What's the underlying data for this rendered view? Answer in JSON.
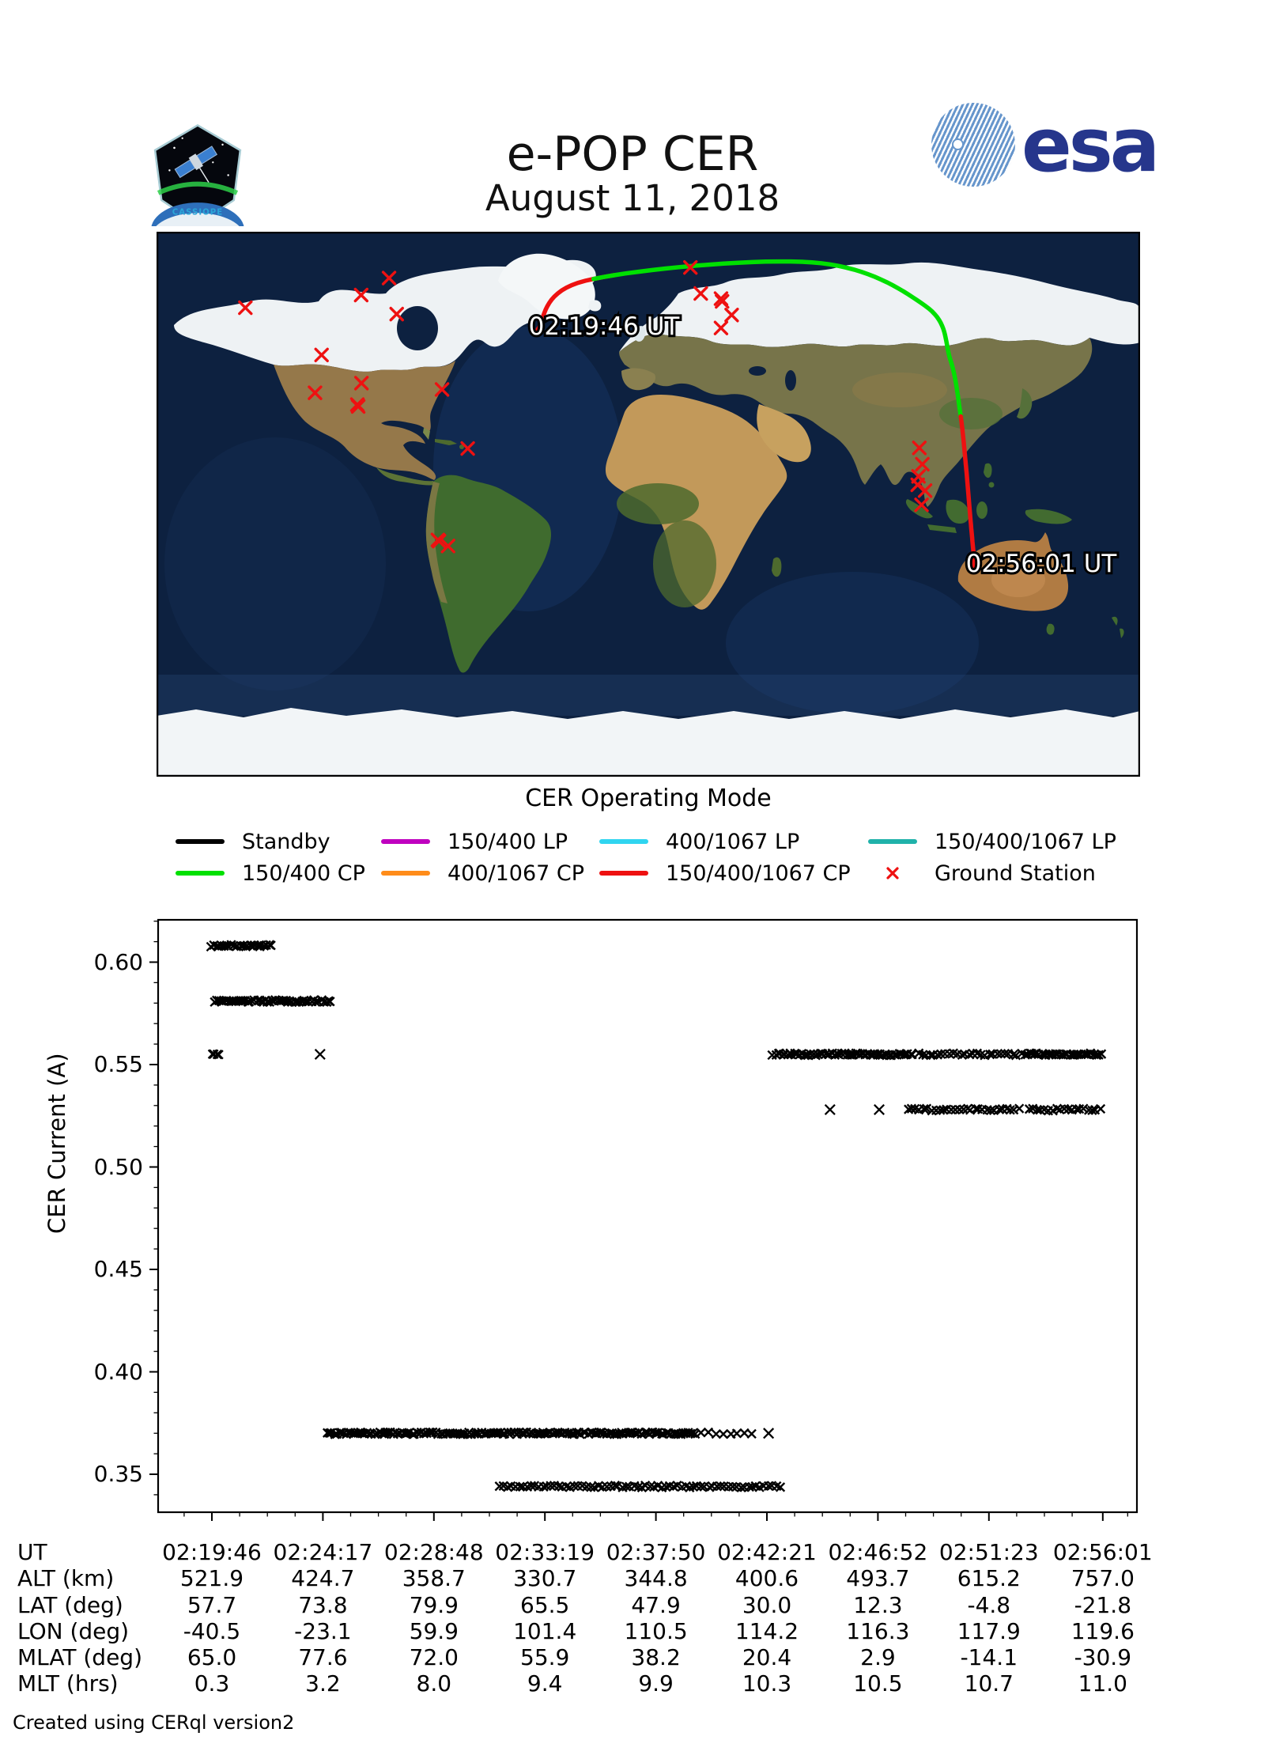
{
  "header": {
    "title": "e-POP CER",
    "date": "August 11, 2018",
    "patch_label": "CASSIOPE",
    "esa_logo": {
      "text": "esa",
      "color": "#26368c"
    }
  },
  "map": {
    "legend_title": "CER Operating Mode",
    "track_labels": {
      "start": "02:19:46 UT",
      "end": "02:56:01 UT"
    },
    "legend_items": [
      {
        "label": "Standby",
        "color": "#000000",
        "marker": "line"
      },
      {
        "label": "150/400 CP",
        "color": "#00e000",
        "marker": "line"
      },
      {
        "label": "150/400 LP",
        "color": "#bf00bf",
        "marker": "line"
      },
      {
        "label": "400/1067 CP",
        "color": "#ff8c1a",
        "marker": "line"
      },
      {
        "label": "400/1067 LP",
        "color": "#30d5f0",
        "marker": "line"
      },
      {
        "label": "150/400/1067 CP",
        "color": "#ee1111",
        "marker": "line"
      },
      {
        "label": "150/400/1067 LP",
        "color": "#20b2aa",
        "marker": "line"
      },
      {
        "label": "Ground Station",
        "color": "#ee1111",
        "marker": "x"
      }
    ],
    "ground_stations": [
      {
        "lon": -147.5,
        "lat": 64.9
      },
      {
        "lon": -94.9,
        "lat": 74.7
      },
      {
        "lon": -105.1,
        "lat": 69.1
      },
      {
        "lon": -92.1,
        "lat": 62.8
      },
      {
        "lon": -119.6,
        "lat": 49.3
      },
      {
        "lon": -105.0,
        "lat": 40.0
      },
      {
        "lon": -122.0,
        "lat": 36.8
      },
      {
        "lon": -106.5,
        "lat": 32.9
      },
      {
        "lon": -106.2,
        "lat": 32.3
      },
      {
        "lon": -75.5,
        "lat": 37.9
      },
      {
        "lon": -66.1,
        "lat": 18.4
      },
      {
        "lon": -77.0,
        "lat": -11.8
      },
      {
        "lon": -76.6,
        "lat": -12.2
      },
      {
        "lon": -73.3,
        "lat": -13.8
      },
      {
        "lon": 15.4,
        "lat": 78.2
      },
      {
        "lon": 19.2,
        "lat": 69.6
      },
      {
        "lon": 26.6,
        "lat": 67.9
      },
      {
        "lon": 27.0,
        "lat": 67.0
      },
      {
        "lon": 30.5,
        "lat": 62.5
      },
      {
        "lon": 26.6,
        "lat": 58.2
      },
      {
        "lon": 99.2,
        "lat": 18.6
      },
      {
        "lon": 100.3,
        "lat": 13.2
      },
      {
        "lon": 98.9,
        "lat": 9.2
      },
      {
        "lon": 98.6,
        "lat": 6.4
      },
      {
        "lon": 101.3,
        "lat": 4.5
      },
      {
        "lon": 100.0,
        "lat": -0.2
      }
    ],
    "track": {
      "points": [
        {
          "ut": "02:19:46",
          "lat": 57.7,
          "lon": -40.5
        },
        {
          "ut": "02:24:17",
          "lat": 73.8,
          "lon": -23.1
        },
        {
          "ut": "02:28:48",
          "lat": 79.9,
          "lon": 59.9
        },
        {
          "ut": "02:33:19",
          "lat": 65.5,
          "lon": 101.4
        },
        {
          "ut": "02:37:50",
          "lat": 47.9,
          "lon": 110.5
        },
        {
          "ut": "02:42:21",
          "lat": 30.0,
          "lon": 114.2
        },
        {
          "ut": "02:46:52",
          "lat": 12.3,
          "lon": 116.3
        },
        {
          "ut": "02:51:23",
          "lat": -4.8,
          "lon": 117.9
        },
        {
          "ut": "02:56:01",
          "lat": -21.8,
          "lon": 119.6
        }
      ],
      "mode_segments": [
        {
          "mode": "150/400/1067 CP",
          "color": "#ee1111",
          "from": "02:19:46",
          "to": "02:24:45"
        },
        {
          "mode": "150/400 CP",
          "color": "#00e000",
          "from": "02:24:45",
          "to": "02:42:55"
        },
        {
          "mode": "150/400/1067 CP",
          "color": "#ee1111",
          "from": "02:42:55",
          "to": "02:56:01"
        }
      ]
    }
  },
  "chart_data": {
    "type": "scatter",
    "title": "",
    "xlabel": "UT",
    "ylabel": "CER Current (A)",
    "marker": "x",
    "marker_color": "#000000",
    "grid": false,
    "x_ticks": [
      "02:19:46",
      "02:24:17",
      "02:28:48",
      "02:33:19",
      "02:37:50",
      "02:42:21",
      "02:46:52",
      "02:51:23",
      "02:56:01"
    ],
    "y_ticks": [
      0.35,
      0.4,
      0.45,
      0.5,
      0.55,
      0.6
    ],
    "ylim": [
      0.331,
      0.621
    ],
    "xlim": [
      "02:17:35",
      "02:57:30"
    ],
    "bands": [
      {
        "current": 0.608,
        "t_start": "02:19:46",
        "t_end": "02:22:16",
        "density": "dense"
      },
      {
        "current": 0.581,
        "t_start": "02:19:52",
        "t_end": "02:24:37",
        "density": "dense"
      },
      {
        "current": 0.555,
        "t_start": "02:19:46",
        "t_end": "02:20:06",
        "density": "dense"
      },
      {
        "current": 0.37,
        "t_start": "02:24:27",
        "t_end": "02:39:30",
        "density": "dense"
      },
      {
        "current": 0.37,
        "t_start": "02:39:42",
        "t_end": "02:41:55",
        "density": "medium"
      },
      {
        "current": 0.344,
        "t_start": "02:31:28",
        "t_end": "02:42:55",
        "density": "medium-dense"
      },
      {
        "current": 0.555,
        "t_start": "02:42:36",
        "t_end": "02:48:20",
        "density": "dense"
      },
      {
        "current": 0.555,
        "t_start": "02:48:30",
        "t_end": "02:52:35",
        "density": "medium-dense"
      },
      {
        "current": 0.555,
        "t_start": "02:52:45",
        "t_end": "02:55:58",
        "density": "dense"
      },
      {
        "current": 0.528,
        "t_start": "02:48:05",
        "t_end": "02:52:40",
        "density": "medium-dense"
      },
      {
        "current": 0.528,
        "t_start": "02:53:00",
        "t_end": "02:55:55",
        "density": "medium-dense"
      }
    ],
    "singles": [
      {
        "current": 0.555,
        "t": "02:24:10"
      },
      {
        "current": 0.37,
        "t": "02:42:25"
      },
      {
        "current": 0.528,
        "t": "02:44:55"
      },
      {
        "current": 0.528,
        "t": "02:46:55"
      }
    ]
  },
  "table": {
    "rows": [
      {
        "label": "UT",
        "values": [
          "02:19:46",
          "02:24:17",
          "02:28:48",
          "02:33:19",
          "02:37:50",
          "02:42:21",
          "02:46:52",
          "02:51:23",
          "02:56:01"
        ]
      },
      {
        "label": "ALT (km)",
        "values": [
          "521.9",
          "424.7",
          "358.7",
          "330.7",
          "344.8",
          "400.6",
          "493.7",
          "615.2",
          "757.0"
        ]
      },
      {
        "label": "LAT (deg)",
        "values": [
          "57.7",
          "73.8",
          "79.9",
          "65.5",
          "47.9",
          "30.0",
          "12.3",
          "-4.8",
          "-21.8"
        ]
      },
      {
        "label": "LON (deg)",
        "values": [
          "-40.5",
          "-23.1",
          "59.9",
          "101.4",
          "110.5",
          "114.2",
          "116.3",
          "117.9",
          "119.6"
        ]
      },
      {
        "label": "MLAT (deg)",
        "values": [
          "65.0",
          "77.6",
          "72.0",
          "55.9",
          "38.2",
          "20.4",
          "2.9",
          "-14.1",
          "-30.9"
        ]
      },
      {
        "label": "MLT (hrs)",
        "values": [
          "0.3",
          "3.2",
          "8.0",
          "9.4",
          "9.9",
          "10.3",
          "10.5",
          "10.7",
          "11.0"
        ]
      }
    ]
  },
  "footer": "Created using CERql version2"
}
